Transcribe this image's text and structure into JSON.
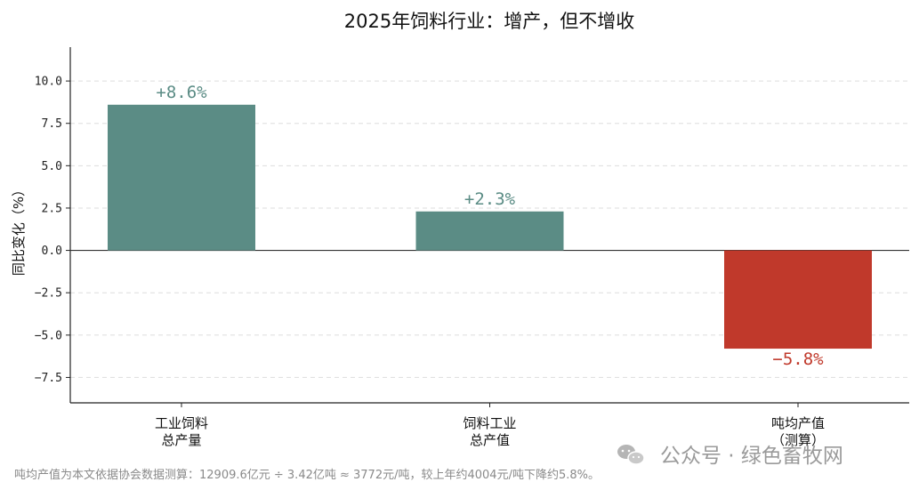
{
  "chart_data": {
    "type": "bar",
    "title": "2025年饲料行业：增产，但不增收",
    "ylabel": "同比变化（%）",
    "xlabel": "",
    "ylim": [
      -9.0,
      12.0
    ],
    "yticks": [
      -7.5,
      -5.0,
      -2.5,
      0.0,
      2.5,
      5.0,
      7.5,
      10.0
    ],
    "ytick_labels": [
      "−7.5",
      "−5.0",
      "−2.5",
      "0.0",
      "2.5",
      "5.0",
      "7.5",
      "10.0"
    ],
    "grid": "horizontal-dashed",
    "zero_line": true,
    "categories": [
      [
        "工业饲料",
        "总产量"
      ],
      [
        "饲料工业",
        "总产值"
      ],
      [
        "吨均产值",
        "（测算）"
      ]
    ],
    "values": [
      8.6,
      2.3,
      -5.8
    ],
    "data_labels": [
      "+8.6%",
      "+2.3%",
      "−5.8%"
    ],
    "colors": [
      "#5b8c85",
      "#5b8c85",
      "#c0392b"
    ]
  },
  "footnote": "吨均产值为本文依据协会数据测算：12909.6亿元 ÷ 3.42亿吨 ≈ 3772元/吨，较上年约4004元/吨下降约5.8%。",
  "watermark": {
    "icon": "wechat-icon",
    "text": "公众号 · 绿色畜牧网"
  }
}
